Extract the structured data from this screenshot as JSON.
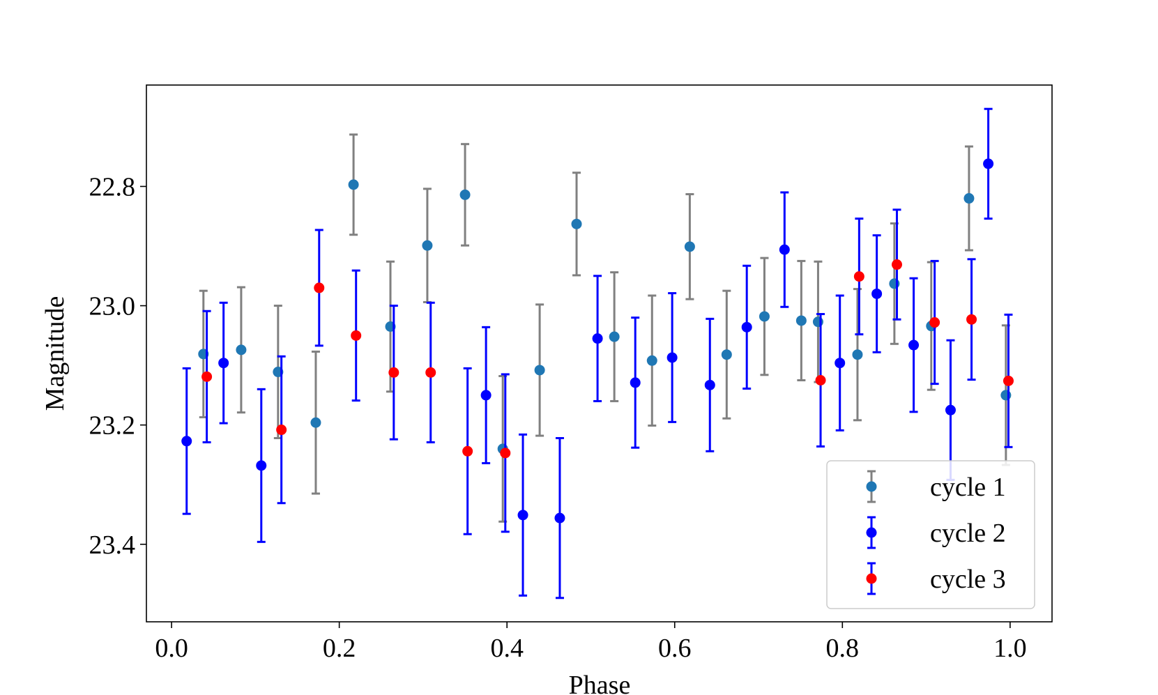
{
  "chart_data": {
    "type": "scatter",
    "title": "",
    "xlabel": "Phase",
    "ylabel": "Magnitude",
    "xlim": [
      -0.03,
      1.05
    ],
    "ylim": [
      23.53,
      22.63
    ],
    "y_inverted": true,
    "xticks": [
      0.0,
      0.2,
      0.4,
      0.6,
      0.8,
      1.0
    ],
    "xtick_labels": [
      "0.0",
      "0.2",
      "0.4",
      "0.6",
      "0.8",
      "1.0"
    ],
    "yticks": [
      22.8,
      23.0,
      23.2,
      23.4
    ],
    "ytick_labels": [
      "22.8",
      "23.0",
      "23.2",
      "23.4"
    ],
    "grid": false,
    "legend_position": "lower-right",
    "series": [
      {
        "name": "cycle 1",
        "marker_color": "#1f77b4",
        "errorbar_color": "#808080",
        "points": [
          {
            "x": 0.038,
            "y": 23.081,
            "err": 0.106
          },
          {
            "x": 0.083,
            "y": 23.074,
            "err": 0.105
          },
          {
            "x": 0.127,
            "y": 23.111,
            "err": 0.111
          },
          {
            "x": 0.172,
            "y": 23.196,
            "err": 0.119
          },
          {
            "x": 0.217,
            "y": 22.797,
            "err": 0.084
          },
          {
            "x": 0.261,
            "y": 23.035,
            "err": 0.109
          },
          {
            "x": 0.305,
            "y": 22.899,
            "err": 0.095
          },
          {
            "x": 0.35,
            "y": 22.814,
            "err": 0.085
          },
          {
            "x": 0.395,
            "y": 23.24,
            "err": 0.122
          },
          {
            "x": 0.439,
            "y": 23.108,
            "err": 0.11
          },
          {
            "x": 0.483,
            "y": 22.863,
            "err": 0.086
          },
          {
            "x": 0.528,
            "y": 23.052,
            "err": 0.108
          },
          {
            "x": 0.573,
            "y": 23.092,
            "err": 0.109
          },
          {
            "x": 0.618,
            "y": 22.901,
            "err": 0.088
          },
          {
            "x": 0.662,
            "y": 23.082,
            "err": 0.107
          },
          {
            "x": 0.707,
            "y": 23.018,
            "err": 0.098
          },
          {
            "x": 0.751,
            "y": 23.025,
            "err": 0.1
          },
          {
            "x": 0.771,
            "y": 23.027,
            "err": 0.101
          },
          {
            "x": 0.818,
            "y": 23.082,
            "err": 0.11
          },
          {
            "x": 0.862,
            "y": 22.963,
            "err": 0.101
          },
          {
            "x": 0.906,
            "y": 23.034,
            "err": 0.107
          },
          {
            "x": 0.951,
            "y": 22.82,
            "err": 0.087
          },
          {
            "x": 0.995,
            "y": 23.15,
            "err": 0.117
          }
        ]
      },
      {
        "name": "cycle 2",
        "marker_color": "#0000ff",
        "errorbar_color": "#0000ff",
        "points": [
          {
            "x": 0.018,
            "y": 23.227,
            "err": 0.122
          },
          {
            "x": 0.062,
            "y": 23.096,
            "err": 0.101
          },
          {
            "x": 0.107,
            "y": 23.268,
            "err": 0.128
          },
          {
            "x": 0.375,
            "y": 23.15,
            "err": 0.114
          },
          {
            "x": 0.419,
            "y": 23.351,
            "err": 0.135
          },
          {
            "x": 0.463,
            "y": 23.356,
            "err": 0.134
          },
          {
            "x": 0.508,
            "y": 23.055,
            "err": 0.105
          },
          {
            "x": 0.553,
            "y": 23.129,
            "err": 0.109
          },
          {
            "x": 0.597,
            "y": 23.087,
            "err": 0.108
          },
          {
            "x": 0.642,
            "y": 23.133,
            "err": 0.111
          },
          {
            "x": 0.686,
            "y": 23.036,
            "err": 0.103
          },
          {
            "x": 0.731,
            "y": 22.906,
            "err": 0.096
          },
          {
            "x": 0.797,
            "y": 23.096,
            "err": 0.113
          },
          {
            "x": 0.841,
            "y": 22.98,
            "err": 0.098
          },
          {
            "x": 0.885,
            "y": 23.066,
            "err": 0.112
          },
          {
            "x": 0.929,
            "y": 23.175,
            "err": 0.117
          },
          {
            "x": 0.974,
            "y": 22.762,
            "err": 0.092
          }
        ]
      },
      {
        "name": "cycle 3",
        "marker_color": "#ff0000",
        "errorbar_color": "#0000ff",
        "points": [
          {
            "x": 0.042,
            "y": 23.119,
            "err": 0.11
          },
          {
            "x": 0.131,
            "y": 23.208,
            "err": 0.123
          },
          {
            "x": 0.176,
            "y": 22.97,
            "err": 0.097
          },
          {
            "x": 0.22,
            "y": 23.05,
            "err": 0.109
          },
          {
            "x": 0.265,
            "y": 23.112,
            "err": 0.112
          },
          {
            "x": 0.309,
            "y": 23.112,
            "err": 0.117
          },
          {
            "x": 0.353,
            "y": 23.244,
            "err": 0.139
          },
          {
            "x": 0.398,
            "y": 23.247,
            "err": 0.132
          },
          {
            "x": 0.774,
            "y": 23.125,
            "err": 0.111
          },
          {
            "x": 0.82,
            "y": 22.951,
            "err": 0.097
          },
          {
            "x": 0.865,
            "y": 22.931,
            "err": 0.092
          },
          {
            "x": 0.91,
            "y": 23.028,
            "err": 0.103
          },
          {
            "x": 0.954,
            "y": 23.023,
            "err": 0.101
          },
          {
            "x": 0.998,
            "y": 23.126,
            "err": 0.111
          }
        ]
      }
    ]
  }
}
